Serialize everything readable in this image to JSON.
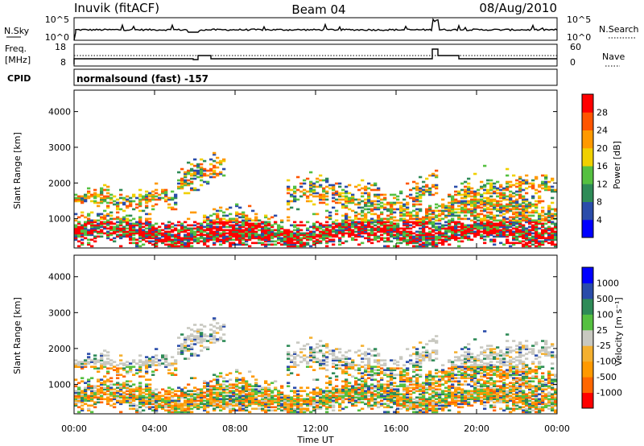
{
  "header": {
    "station": "Inuvik (fitACF)",
    "beam": "Beam 04",
    "date": "08/Aug/2010"
  },
  "panels": {
    "nsky_label": "N.Sky",
    "nsearch_label": "N.Search",
    "freq_label_1": "Freq.",
    "freq_label_2": "[MHz]",
    "nave_label": "Nave",
    "cpid_label": "CPID",
    "cpid_text": "normalsound (fast) -157",
    "nsky_ticks": [
      "10^5",
      "10^0"
    ],
    "nsearch_ticks": [
      "10^5",
      "10^0"
    ],
    "freq_ticks": [
      "18",
      "8"
    ],
    "nave_ticks": [
      "60",
      "0"
    ]
  },
  "colors": {
    "power": [
      "#0000ff",
      "#2a4caa",
      "#2e8b57",
      "#55c040",
      "#f0d000",
      "#ff9900",
      "#ff5500",
      "#ff0000"
    ],
    "velocity": [
      "#ff0000",
      "#ff6600",
      "#ff9900",
      "#f4b030",
      "#c8c8c0",
      "#55c040",
      "#2e8b57",
      "#2a4caa",
      "#0000ff"
    ]
  },
  "chart_data": [
    {
      "type": "heatmap",
      "name": "Power",
      "ylabel": "Slant Range [km]",
      "yticks": [
        "1000",
        "2000",
        "3000",
        "4000"
      ],
      "colorbar_label": "Power [dB]",
      "colorbar_ticks": [
        "4",
        "8",
        "12",
        "16",
        "20",
        "24",
        "28"
      ],
      "colorbar_range": [
        0,
        30
      ],
      "ylim": [
        180,
        4600
      ]
    },
    {
      "type": "heatmap",
      "name": "Velocity",
      "ylabel": "Slant Range [km]",
      "yticks": [
        "1000",
        "2000",
        "3000",
        "4000"
      ],
      "colorbar_label": "Velocity [m s⁻¹]",
      "colorbar_ticks": [
        "1000",
        "500",
        "100",
        "25",
        "-25",
        "-100",
        "-500",
        "-1000"
      ],
      "ylim": [
        180,
        4600
      ]
    }
  ],
  "xaxis": {
    "label": "Time UT",
    "ticks": [
      "00:00",
      "04:00",
      "08:00",
      "12:00",
      "16:00",
      "20:00",
      "00:00"
    ]
  }
}
